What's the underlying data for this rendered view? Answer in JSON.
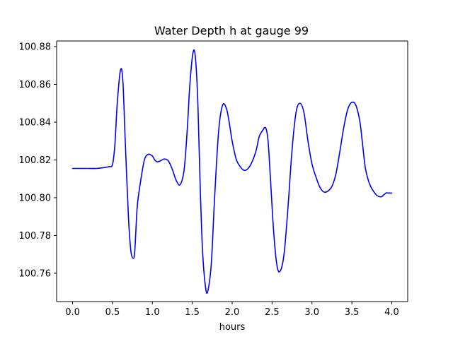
{
  "chart_data": {
    "type": "line",
    "title": "Water Depth h at gauge 99",
    "xlabel": "hours",
    "ylabel": "",
    "xlim": [
      -0.2,
      4.2
    ],
    "ylim": [
      100.745,
      100.883
    ],
    "x_ticks": [
      0.0,
      0.5,
      1.0,
      1.5,
      2.0,
      2.5,
      3.0,
      3.5,
      4.0
    ],
    "x_tick_labels": [
      "0.0",
      "0.5",
      "1.0",
      "1.5",
      "2.0",
      "2.5",
      "3.0",
      "3.5",
      "4.0"
    ],
    "y_ticks": [
      100.76,
      100.78,
      100.8,
      100.82,
      100.84,
      100.86,
      100.88
    ],
    "y_tick_labels": [
      "100.76",
      "100.78",
      "100.80",
      "100.82",
      "100.84",
      "100.86",
      "100.88"
    ],
    "grid": false,
    "series": [
      {
        "color": "#0000ff",
        "x": [
          0.0,
          0.1,
          0.2,
          0.3,
          0.4,
          0.46,
          0.5,
          0.53,
          0.56,
          0.6,
          0.63,
          0.66,
          0.7,
          0.73,
          0.76,
          0.78,
          0.81,
          0.85,
          0.9,
          0.95,
          1.0,
          1.03,
          1.06,
          1.1,
          1.15,
          1.2,
          1.25,
          1.3,
          1.35,
          1.4,
          1.44,
          1.47,
          1.51,
          1.54,
          1.57,
          1.6,
          1.63,
          1.67,
          1.7,
          1.74,
          1.78,
          1.83,
          1.88,
          1.93,
          1.97,
          2.0,
          2.05,
          2.1,
          2.15,
          2.2,
          2.25,
          2.3,
          2.34,
          2.38,
          2.42,
          2.45,
          2.48,
          2.52,
          2.56,
          2.6,
          2.65,
          2.7,
          2.75,
          2.8,
          2.85,
          2.9,
          2.95,
          3.0,
          3.05,
          3.1,
          3.15,
          3.2,
          3.25,
          3.3,
          3.35,
          3.4,
          3.45,
          3.5,
          3.55,
          3.6,
          3.63,
          3.67,
          3.72,
          3.77,
          3.82,
          3.87,
          3.9,
          3.93,
          3.96,
          4.0
        ],
        "y": [
          100.8155,
          100.8155,
          100.8155,
          100.8155,
          100.816,
          100.8165,
          100.8175,
          100.828,
          100.85,
          100.8675,
          100.862,
          100.83,
          100.79,
          100.772,
          100.768,
          100.772,
          100.795,
          100.808,
          100.82,
          100.823,
          100.822,
          100.82,
          100.819,
          100.8195,
          100.8205,
          100.8195,
          100.815,
          100.809,
          100.807,
          100.8155,
          100.838,
          100.86,
          100.877,
          100.874,
          100.85,
          100.805,
          100.771,
          100.7515,
          100.7515,
          100.766,
          100.8,
          100.835,
          100.849,
          100.847,
          100.838,
          100.83,
          100.8205,
          100.8165,
          100.8145,
          100.8155,
          100.819,
          100.825,
          100.8325,
          100.8355,
          100.837,
          100.83,
          100.81,
          100.782,
          100.7645,
          100.761,
          100.77,
          100.795,
          100.825,
          100.845,
          100.85,
          100.845,
          100.83,
          100.818,
          100.811,
          100.8055,
          100.803,
          100.8035,
          100.806,
          100.8125,
          100.8245,
          100.8375,
          100.847,
          100.8505,
          100.849,
          100.8405,
          100.83,
          100.8155,
          100.8075,
          100.8035,
          100.801,
          100.8005,
          100.8015,
          100.8025,
          100.8025,
          100.8025
        ]
      }
    ]
  }
}
